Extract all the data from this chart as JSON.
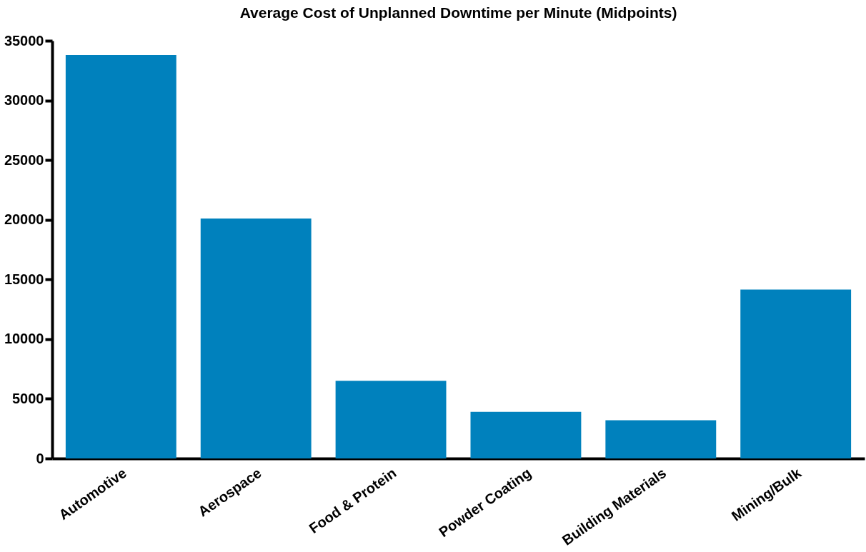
{
  "chart_data": {
    "type": "bar",
    "title": "Average Cost of Unplanned Downtime per Minute (Midpoints)",
    "categories": [
      "Automotive",
      "Aerospace",
      "Food & Protein",
      "Powder Coating",
      "Building Materials",
      "Mining/Bulk"
    ],
    "values": [
      33800,
      20100,
      6500,
      3900,
      3200,
      14150
    ],
    "color": "#0081bd",
    "ylim": [
      0,
      35000
    ],
    "yticks": [
      0,
      5000,
      10000,
      15000,
      20000,
      25000,
      30000,
      35000
    ],
    "grid": false
  }
}
